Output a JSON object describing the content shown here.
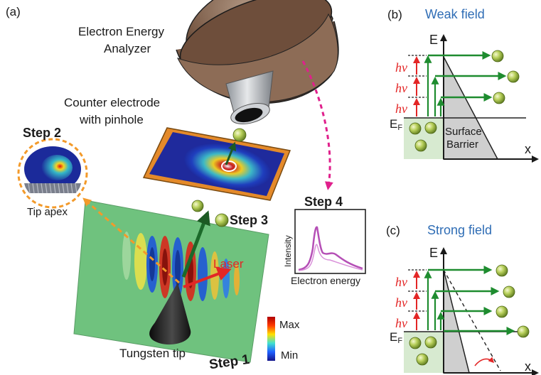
{
  "panel_a": {
    "label": "(a)",
    "analyzer": [
      "Electron Energy",
      "Analyzer"
    ],
    "counter": [
      "Counter electrode",
      "with pinhole"
    ],
    "step1": "Step 1",
    "step2": "Step 2",
    "step3": "Step 3",
    "step4": "Step 4",
    "tip_apex": "Tip apex",
    "laser": "Laser",
    "tungsten": "Tungsten tip",
    "cmap_max": "Max",
    "cmap_min": "Min",
    "inset": {
      "ylabel": "Intensity",
      "xlabel": "Electron energy"
    }
  },
  "panel_b": {
    "label": "(b)",
    "title": "Weak field",
    "E": "E",
    "x": "x",
    "ef": "E",
    "ef_sub": "F",
    "barrier": [
      "Surface",
      "Barrier"
    ],
    "hv": [
      "hv",
      "hv",
      "hv"
    ]
  },
  "panel_c": {
    "label": "(c)",
    "title": "Strong field",
    "E": "E",
    "x": "x",
    "ef": "E",
    "ef_sub": "F",
    "hv": [
      "hv",
      "hv",
      "hv"
    ]
  },
  "colors": {
    "green_arrow": "#1e8c2f",
    "red_arrow": "#e32626",
    "title_blue": "#2f6db5",
    "orange_dash": "#f39a2a",
    "magenta_dash": "#e0208c",
    "barrier_gray": "#cfcfcf",
    "fermi_green": "#d7ead0"
  }
}
